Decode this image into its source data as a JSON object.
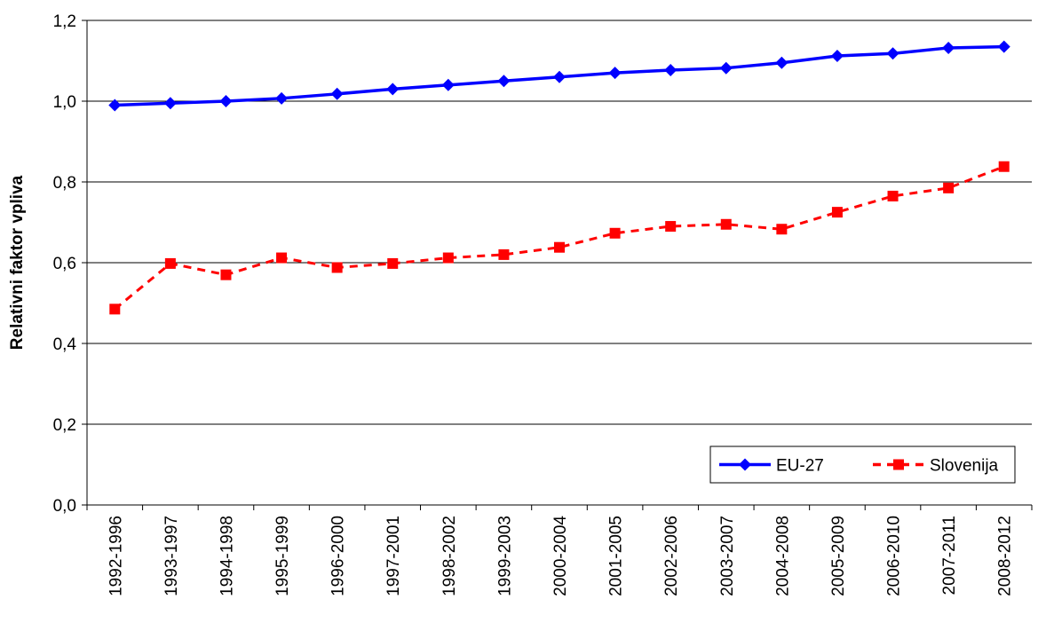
{
  "chart_data": {
    "type": "line",
    "title": "",
    "xlabel": "",
    "ylabel": "Relativni faktor vpliva",
    "categories": [
      "1992-1996",
      "1993-1997",
      "1994-1998",
      "1995-1999",
      "1996-2000",
      "1997-2001",
      "1998-2002",
      "1999-2003",
      "2000-2004",
      "2001-2005",
      "2002-2006",
      "2003-2007",
      "2004-2008",
      "2005-2009",
      "2006-2010",
      "2007-2011",
      "2008-2012"
    ],
    "ylim": [
      0,
      1.2
    ],
    "yticks": [
      "0,0",
      "0,2",
      "0,4",
      "0,6",
      "0,8",
      "1,0",
      "1,2"
    ],
    "grid": true,
    "legend_position": "bottom-right",
    "series": [
      {
        "name": "EU-27",
        "color": "#0000ff",
        "marker": "diamond",
        "line_style": "solid",
        "values": [
          0.99,
          0.995,
          1.0,
          1.007,
          1.018,
          1.03,
          1.04,
          1.05,
          1.06,
          1.07,
          1.077,
          1.082,
          1.095,
          1.112,
          1.118,
          1.132,
          1.135
        ]
      },
      {
        "name": "Slovenija",
        "color": "#ff0000",
        "marker": "square",
        "line_style": "dashed",
        "values": [
          0.485,
          0.598,
          0.57,
          0.612,
          0.588,
          0.598,
          0.612,
          0.62,
          0.638,
          0.673,
          0.69,
          0.695,
          0.683,
          0.725,
          0.765,
          0.785,
          0.838
        ]
      }
    ]
  }
}
